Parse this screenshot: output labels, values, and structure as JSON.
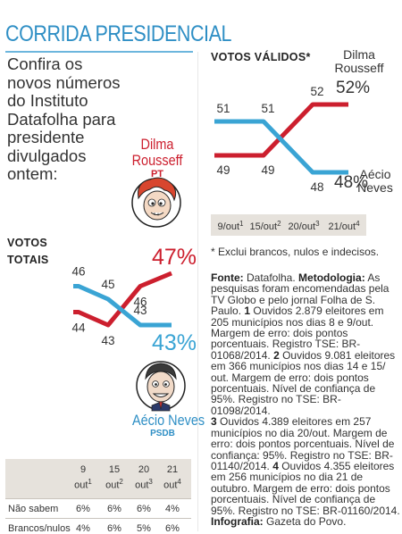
{
  "header": {
    "title": "CORRIDA PRESIDENCIAL"
  },
  "intro": {
    "text": "Confira os novos números do Instituto Datafolha para presidente divulgados ontem:"
  },
  "candidates": {
    "dilma": {
      "name_line1": "Dilma",
      "name_line2": "Rousseff",
      "party": "PT",
      "color": "#cc1f2e"
    },
    "aecio": {
      "name": "Aécio Neves",
      "party": "PSDB",
      "color": "#3aa4d4"
    }
  },
  "chart_data": [
    {
      "type": "line",
      "title": "VOTOS TOTAIS",
      "title_line1": "VOTOS",
      "title_line2": "TOTAIS",
      "x": [
        "9/out",
        "15/out",
        "20/out",
        "21/out"
      ],
      "series": [
        {
          "name": "Dilma Rousseff",
          "color": "#cc1f2e",
          "values": [
            44,
            43,
            46,
            47
          ],
          "final_label": "47%"
        },
        {
          "name": "Aécio Neves",
          "color": "#3aa4d4",
          "values": [
            46,
            45,
            43,
            43
          ],
          "final_label": "43%"
        }
      ]
    },
    {
      "type": "line",
      "title": "VOTOS VÁLIDOS*",
      "x": [
        "9/out",
        "15/out",
        "20/out",
        "21/out"
      ],
      "x_superscripts": [
        "1",
        "2",
        "3",
        "4"
      ],
      "x_main": [
        "9/out",
        "15/out",
        "20/out",
        "21/out"
      ],
      "series": [
        {
          "name": "Dilma Rousseff",
          "name_line1": "Dilma",
          "name_line2": "Rousseff",
          "color": "#cc1f2e",
          "values": [
            49,
            49,
            52,
            52
          ],
          "final_label": "52%"
        },
        {
          "name": "Aécio Neves",
          "name_line1": "Aécio",
          "name_line2": "Neves",
          "color": "#3aa4d4",
          "values": [
            51,
            51,
            48,
            48
          ],
          "final_label": "48%"
        }
      ]
    },
    {
      "type": "table",
      "columns": [
        {
          "num": "9",
          "label": "out",
          "sup": "1"
        },
        {
          "num": "15",
          "label": "out",
          "sup": "2"
        },
        {
          "num": "20",
          "label": "out",
          "sup": "3"
        },
        {
          "num": "21",
          "label": "out",
          "sup": "4"
        }
      ],
      "rows": [
        {
          "label": "Não sabem",
          "values": [
            "6%",
            "6%",
            "6%",
            "4%"
          ]
        },
        {
          "label": "Brancos/nulos",
          "values": [
            "4%",
            "6%",
            "5%",
            "6%"
          ]
        }
      ]
    }
  ],
  "footnote": "* Exclui brancos, nulos e indecisos.",
  "method": {
    "fonte_label": "Fonte:",
    "fonte_value": " Datafolha. ",
    "metodologia_label": "Metodologia:",
    "metodologia_text": " As pesquisas foram encomendadas pela TV Globo e pelo jornal Folha de S. Paulo. ",
    "item1_num": "1",
    "item1": " Ouvidos 2.879 eleitores em 205 municípios nos dias 8 e 9/out. Margem de erro: dois pontos porcentuais. Registro TSE: BR-01068/2014. ",
    "item2_num": "2",
    "item2": " Ouvidos 9.081 eleitores em 366 municípios nos dias 14 e 15/ out. Margem de erro: dois pontos porcentuais. Nível de confiança de 95%. Registro no TSE: BR-01098/2014.",
    "item3_num": "3",
    "item3": " Ouvidos 4.389 eleitores em 257 municípios no dia 20/out. Margem de erro: dois pontos porcentuais. Nível de confiança: 95%. Registro no TSE: BR-01140/2014. ",
    "item4_num": "4",
    "item4": " Ouvidos 4.355 eleitores em 256 municípios no dia 21 de outubro. Margem de erro: dois pontos porcentuais. Nível de confiança de 95%. Registro no TSE: BR-01160/2014.",
    "infografia_label": "Infografia:",
    "infografia_value": " Gazeta do Povo."
  }
}
